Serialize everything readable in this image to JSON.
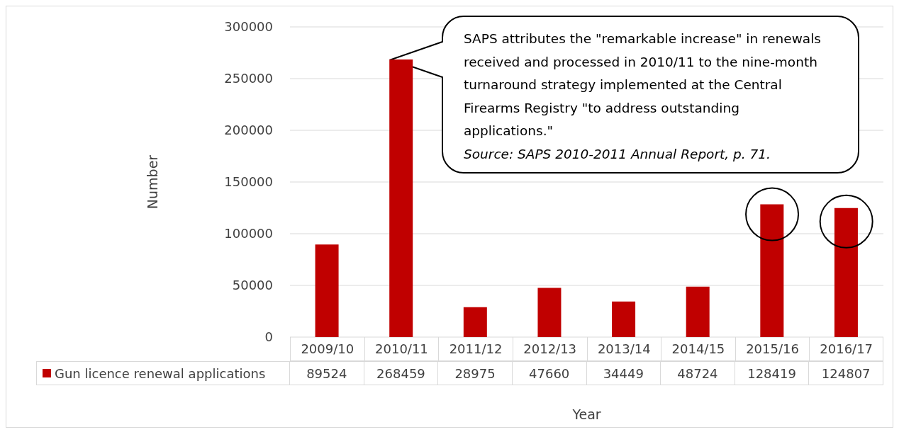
{
  "chart_data": {
    "type": "bar",
    "xlabel": "Year",
    "ylabel": "Number",
    "categories": [
      "2009/10",
      "2010/11",
      "2011/12",
      "2012/13",
      "2013/14",
      "2014/15",
      "2015/16",
      "2016/17"
    ],
    "series": [
      {
        "name": "Gun licence renewal applications",
        "color": "#c00000",
        "values": [
          89524,
          268459,
          28975,
          47660,
          34449,
          48724,
          128419,
          124807
        ]
      }
    ],
    "ylim": [
      0,
      300000
    ],
    "yticks": [
      0,
      50000,
      100000,
      150000,
      200000,
      250000,
      300000
    ],
    "grid": "y",
    "legend": "bottom",
    "data_labels": true,
    "annotations": [
      "SAPS attributes the \"remarkable increase\" in renewals received and processed in 2010/11 to the nine-month turnaround strategy implemented at the Central Firearms Registry \"to address outstanding applications.\"",
      "Source: SAPS 2010-2011 Annual Report, p. 71."
    ]
  }
}
